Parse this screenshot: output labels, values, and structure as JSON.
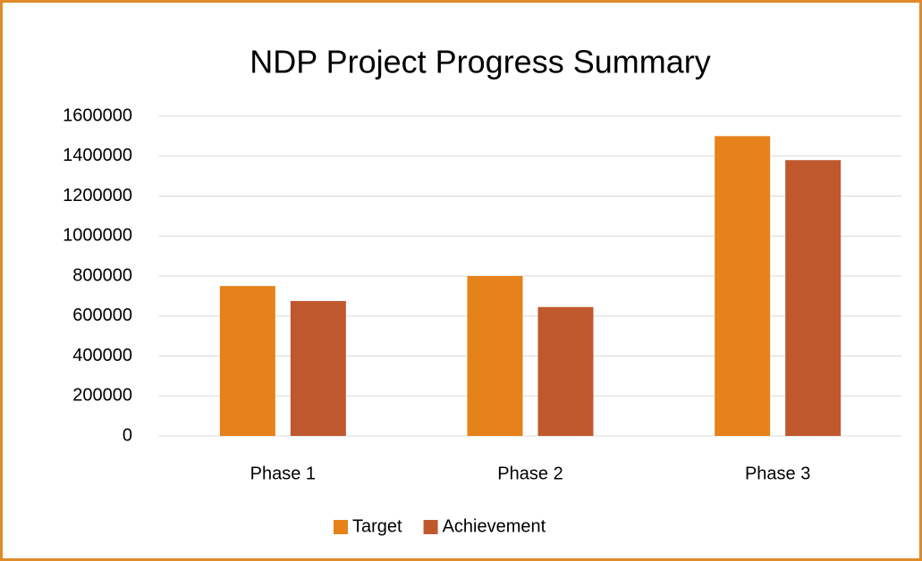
{
  "chart_data": {
    "type": "bar",
    "title": "NDP Project Progress Summary",
    "categories": [
      "Phase 1",
      "Phase 2",
      "Phase 3"
    ],
    "series": [
      {
        "name": "Target",
        "color": "#e6821a",
        "values": [
          750000,
          800000,
          1500000
        ]
      },
      {
        "name": "Achievement",
        "color": "#c0582e",
        "values": [
          675000,
          645000,
          1380000
        ]
      }
    ],
    "ylim": [
      0,
      1600000
    ],
    "yticks": [
      0,
      200000,
      400000,
      600000,
      800000,
      1000000,
      1200000,
      1400000,
      1600000
    ],
    "grid": true,
    "legend": "bottom"
  }
}
